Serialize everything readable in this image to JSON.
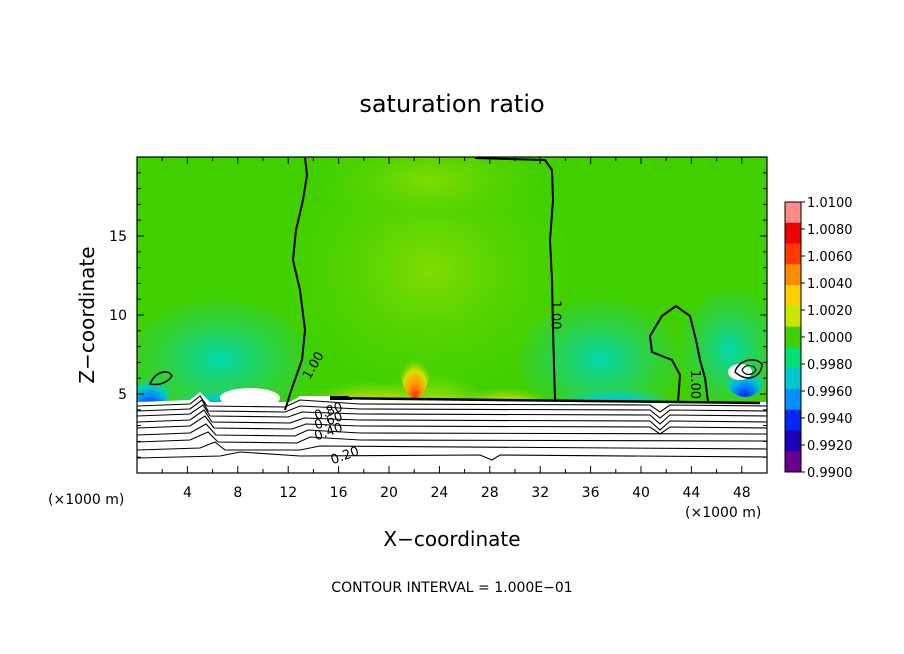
{
  "chart_data": {
    "type": "heatmap",
    "title": "saturation ratio",
    "xlabel": "X−coordinate",
    "ylabel": "Z−coordinate",
    "x_unit": "(×1000 m)",
    "y_unit": "(×1000 m)",
    "xlim": [
      0,
      50
    ],
    "ylim": [
      0,
      20
    ],
    "x_ticks": [
      4,
      8,
      12,
      16,
      20,
      24,
      28,
      32,
      36,
      40,
      44,
      48
    ],
    "y_ticks": [
      5,
      10,
      15
    ],
    "note": "CONTOUR INTERVAL = 1.000E−01",
    "colorbar": {
      "labels": [
        "1.0100",
        "1.0080",
        "1.0060",
        "1.0040",
        "1.0020",
        "1.0000",
        "0.9980",
        "0.9960",
        "0.9940",
        "0.9920",
        "0.9900"
      ],
      "colors": [
        "#ff8a8a",
        "#ee0000",
        "#ff3a00",
        "#ff8c00",
        "#ffd000",
        "#c8e600",
        "#3ed000",
        "#00e070",
        "#00c8d0",
        "#0090ff",
        "#0028f0",
        "#2000b8",
        "#6a0090"
      ]
    },
    "contour_labels": [
      {
        "text": "1.00",
        "x": 14,
        "z": 6.8
      },
      {
        "text": "1.00",
        "x": 33.2,
        "z": 10
      },
      {
        "text": "1.00",
        "x": 44.3,
        "z": 5.6
      },
      {
        "text": "0.80",
        "x": 15.2,
        "z": 3.9
      },
      {
        "text": "0.60",
        "x": 15.2,
        "z": 3.3
      },
      {
        "text": "0.40",
        "x": 15.2,
        "z": 2.6
      },
      {
        "text": "0.20",
        "x": 16.5,
        "z": 1.1
      }
    ]
  }
}
